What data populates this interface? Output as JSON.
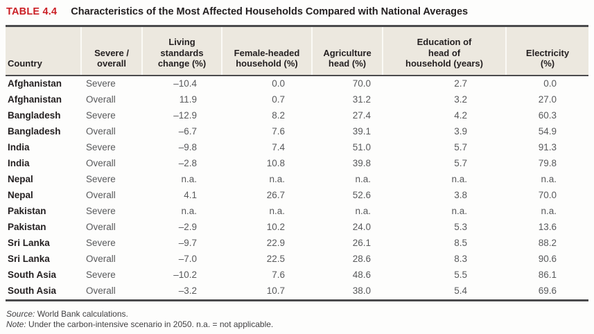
{
  "title": {
    "label": "TABLE 4.4",
    "text": "Characteristics of the Most Affected Households Compared with National Averages"
  },
  "table": {
    "columns": [
      "Country",
      "Severe /\noverall",
      "Living\nstandards\nchange (%)",
      "Female-headed\nhousehold (%)",
      "Agriculture\nhead (%)",
      "Education of\nhead of\nhousehold (years)",
      "Electricity\n(%)"
    ],
    "rows": [
      [
        "Afghanistan",
        "Severe",
        "–10.4",
        "0.0",
        "70.0",
        "2.7",
        "0.0"
      ],
      [
        "Afghanistan",
        "Overall",
        "11.9",
        "0.7",
        "31.2",
        "3.2",
        "27.0"
      ],
      [
        "Bangladesh",
        "Severe",
        "–12.9",
        "8.2",
        "27.4",
        "4.2",
        "60.3"
      ],
      [
        "Bangladesh",
        "Overall",
        "–6.7",
        "7.6",
        "39.1",
        "3.9",
        "54.9"
      ],
      [
        "India",
        "Severe",
        "–9.8",
        "7.4",
        "51.0",
        "5.7",
        "91.3"
      ],
      [
        "India",
        "Overall",
        "–2.8",
        "10.8",
        "39.8",
        "5.7",
        "79.8"
      ],
      [
        "Nepal",
        "Severe",
        "n.a.",
        "n.a.",
        "n.a.",
        "n.a.",
        "n.a."
      ],
      [
        "Nepal",
        "Overall",
        "4.1",
        "26.7",
        "52.6",
        "3.8",
        "70.0"
      ],
      [
        "Pakistan",
        "Severe",
        "n.a.",
        "n.a.",
        "n.a.",
        "n.a.",
        "n.a."
      ],
      [
        "Pakistan",
        "Overall",
        "–2.9",
        "10.2",
        "24.0",
        "5.3",
        "13.6"
      ],
      [
        "Sri Lanka",
        "Severe",
        "–9.7",
        "22.9",
        "26.1",
        "8.5",
        "88.2"
      ],
      [
        "Sri Lanka",
        "Overall",
        "–7.0",
        "22.5",
        "28.6",
        "8.3",
        "90.6"
      ],
      [
        "South Asia",
        "Severe",
        "–10.2",
        "7.6",
        "48.6",
        "5.5",
        "86.1"
      ],
      [
        "South Asia",
        "Overall",
        "–3.2",
        "10.7",
        "38.0",
        "5.4",
        "69.6"
      ]
    ]
  },
  "footer": {
    "source_label": "Source:",
    "source_text": " World Bank calculations.",
    "note_label": "Note:",
    "note_text": " Under the carbon-intensive scenario in 2050. n.a. = not applicable."
  },
  "colors": {
    "accent_red": "#cb2026",
    "header_bg": "#ece8df",
    "rule_dark": "#4a4a4c",
    "body_text": "#58595b",
    "strong_text": "#231f20"
  }
}
